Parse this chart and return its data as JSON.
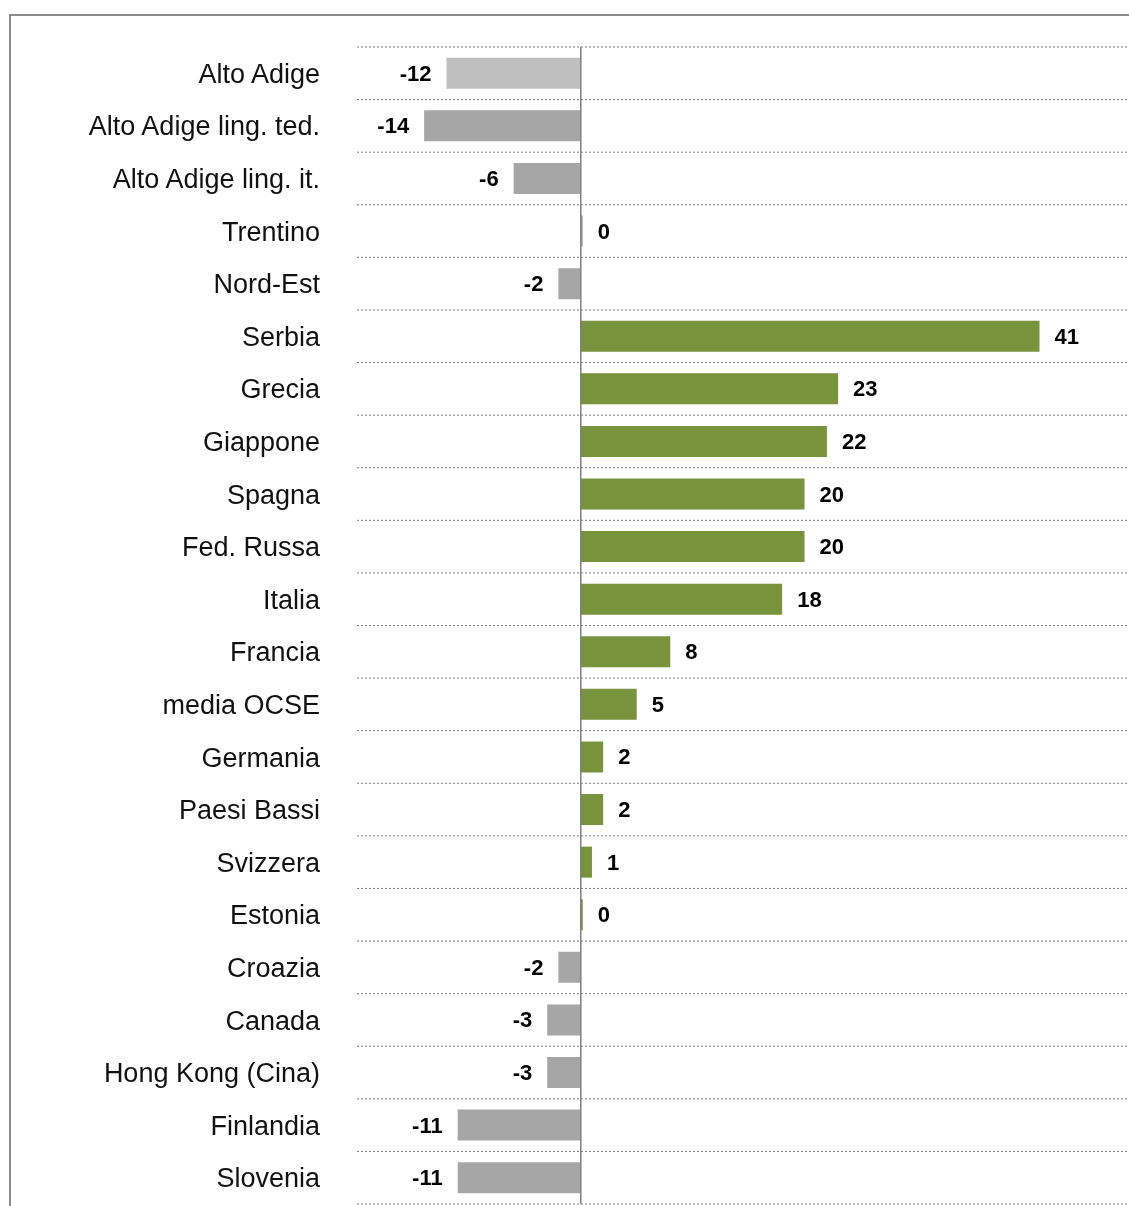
{
  "chart_data": {
    "type": "bar",
    "orientation": "horizontal",
    "categories": [
      "Alto Adige",
      "Alto Adige ling. ted.",
      "Alto Adige ling. it.",
      "Trentino",
      "Nord-Est",
      "Serbia",
      "Grecia",
      "Giappone",
      "Spagna",
      "Fed. Russa",
      "Italia",
      "Francia",
      "media OCSE",
      "Germania",
      "Paesi Bassi",
      "Svizzera",
      "Estonia",
      "Croazia",
      "Canada",
      "Hong Kong (Cina)",
      "Finlandia",
      "Slovenia"
    ],
    "values": [
      -12,
      -14,
      -6,
      0,
      -2,
      41,
      23,
      22,
      20,
      20,
      18,
      8,
      5,
      2,
      2,
      1,
      0,
      -2,
      -3,
      -3,
      -11,
      -11
    ],
    "colors": [
      "#bfbfbf",
      "#a6a6a6",
      "#a6a6a6",
      "#a6a6a6",
      "#a6a6a6",
      "#77933c",
      "#77933c",
      "#77933c",
      "#77933c",
      "#77933c",
      "#77933c",
      "#77933c",
      "#77933c",
      "#77933c",
      "#77933c",
      "#77933c",
      "#77933c",
      "#a6a6a6",
      "#a6a6a6",
      "#a6a6a6",
      "#a6a6a6",
      "#a6a6a6"
    ],
    "xlim": [
      -20,
      49
    ],
    "grid": "y",
    "data_labels": true
  }
}
